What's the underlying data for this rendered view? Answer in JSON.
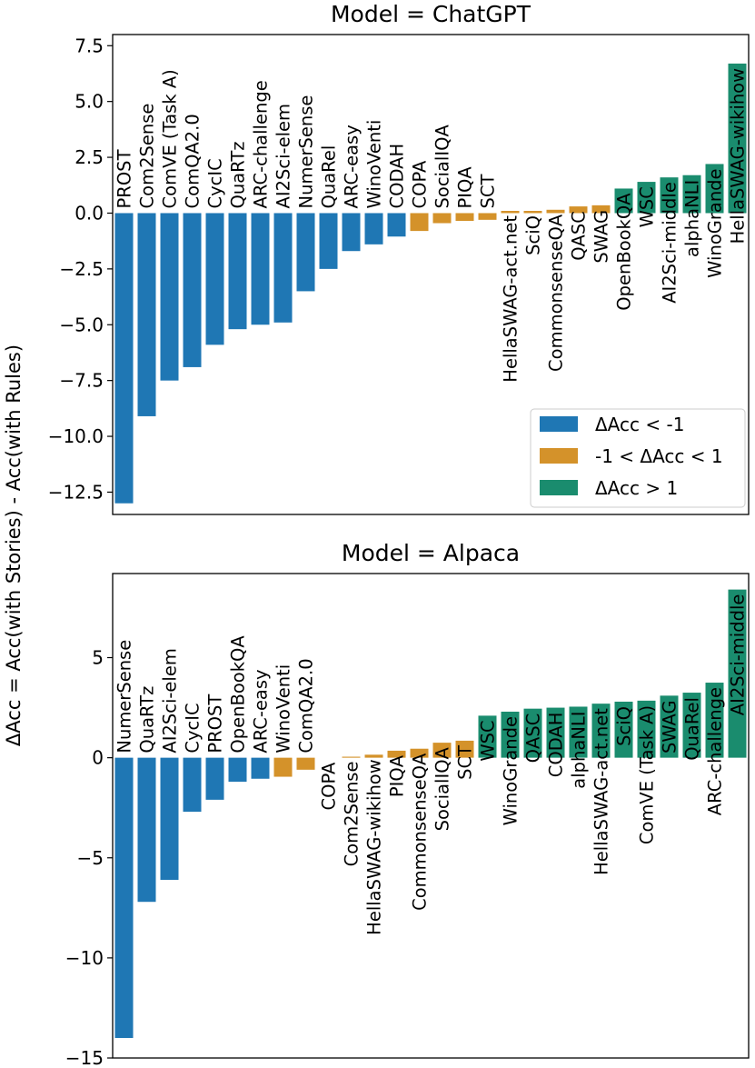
{
  "colors": {
    "lt_neg1": "#1f77b4",
    "mid": "#d4922a",
    "gt_1": "#1a8c6e"
  },
  "ylabel": "ΔAcc = Acc(with Stories) - Acc(with Rules)",
  "legend": {
    "placement": "lower-right of top panel",
    "entries": [
      "ΔAcc < -1",
      "-1 < ΔAcc < 1",
      "ΔAcc > 1"
    ]
  },
  "chart_data": [
    {
      "type": "bar",
      "title": "Model = ChatGPT",
      "ylabel": "ΔAcc = Acc(with Stories) - Acc(with Rules)",
      "ylim": [
        -13.5,
        8.0
      ],
      "yticks": [
        7.5,
        5.0,
        2.5,
        0.0,
        -2.5,
        -5.0,
        -7.5,
        -10.0,
        -12.5
      ],
      "ytick_labels": [
        "7.5",
        "5.0",
        "2.5",
        "0.0",
        "−2.5",
        "−5.0",
        "−7.5",
        "−10.0",
        "−12.5"
      ],
      "grid": false,
      "categories": [
        "PROST",
        "Com2Sense",
        "ComVE (Task A)",
        "ComQA2.0",
        "CycIC",
        "QuaRTz",
        "ARC-challenge",
        "AI2Sci-elem",
        "NumerSense",
        "QuaRel",
        "ARC-easy",
        "WinoVenti",
        "CODAH",
        "COPA",
        "SocialIQA",
        "PIQA",
        "SCT",
        "HellaSWAG-act.net",
        "SciQ",
        "CommonsenseQA",
        "QASC",
        "SWAG",
        "OpenBookQA",
        "WSC",
        "AI2Sci-middle",
        "alphaNLI",
        "WinoGrande",
        "HellaSWAG-wikihow"
      ],
      "values": [
        -13.0,
        -9.1,
        -7.5,
        -6.9,
        -5.9,
        -5.2,
        -5.0,
        -4.9,
        -3.5,
        -2.5,
        -1.7,
        -1.4,
        -1.05,
        -0.8,
        -0.45,
        -0.35,
        -0.3,
        0.1,
        0.1,
        0.15,
        0.3,
        0.35,
        1.1,
        1.4,
        1.6,
        1.7,
        2.2,
        6.7
      ]
    },
    {
      "type": "bar",
      "title": "Model = Alpaca",
      "ylabel": "ΔAcc = Acc(with Stories) - Acc(with Rules)",
      "ylim": [
        -15.0,
        9.2
      ],
      "yticks": [
        5,
        0,
        -5,
        -10,
        -15
      ],
      "ytick_labels": [
        "5",
        "0",
        "−5",
        "−10",
        "−15"
      ],
      "grid": false,
      "categories": [
        "NumerSense",
        "QuaRTz",
        "AI2Sci-elem",
        "CycIC",
        "PROST",
        "OpenBookQA",
        "ARC-easy",
        "WinoVenti",
        "ComQA2.0",
        "COPA",
        "Com2Sense",
        "HellaSWAG-wikihow",
        "PIQA",
        "CommonsenseQA",
        "SocialIQA",
        "SCT",
        "WSC",
        "WinoGrande",
        "QASC",
        "CODAH",
        "alphaNLI",
        "HellaSWAG-act.net",
        "SciQ",
        "ComVE (Task A)",
        "SWAG",
        "QuaRel",
        "ARC-challenge",
        "AI2Sci-middle"
      ],
      "values": [
        -14.0,
        -7.2,
        -6.1,
        -2.7,
        -2.1,
        -1.2,
        -1.05,
        -0.95,
        -0.6,
        0.0,
        0.05,
        0.15,
        0.35,
        0.45,
        0.75,
        0.85,
        2.1,
        2.3,
        2.45,
        2.5,
        2.55,
        2.7,
        2.8,
        2.85,
        3.1,
        3.25,
        3.75,
        8.4
      ]
    }
  ]
}
